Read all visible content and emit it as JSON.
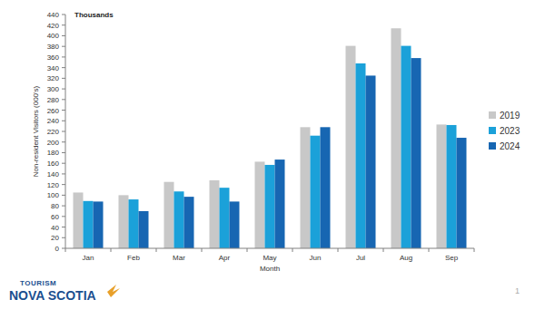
{
  "chart_data": {
    "type": "bar",
    "x_label": "Month",
    "y_label": "Non-resident Visitors (000's)",
    "annotations": [
      "Thousands",
      "TOURISM",
      "NOVA SCOTIA",
      "1"
    ],
    "categories": [
      "Jan",
      "Feb",
      "Mar",
      "Apr",
      "May",
      "Jun",
      "Jul",
      "Aug",
      "Sep"
    ],
    "series": [
      {
        "name": "2019",
        "color": "#c8c8c8",
        "values": [
          105,
          100,
          125,
          128,
          163,
          228,
          381,
          414,
          233
        ]
      },
      {
        "name": "2023",
        "color": "#1ba1d9",
        "values": [
          89,
          92,
          107,
          114,
          157,
          212,
          348,
          381,
          232
        ]
      },
      {
        "name": "2024",
        "color": "#1766b2",
        "values": [
          88,
          70,
          97,
          88,
          167,
          228,
          325,
          358,
          208
        ]
      }
    ],
    "ylim": [
      0,
      440
    ],
    "yticks": [
      0,
      20,
      40,
      60,
      80,
      100,
      120,
      140,
      160,
      180,
      200,
      220,
      240,
      260,
      280,
      300,
      320,
      340,
      360,
      380,
      400,
      420,
      440
    ],
    "grid": false,
    "legend": "right"
  }
}
